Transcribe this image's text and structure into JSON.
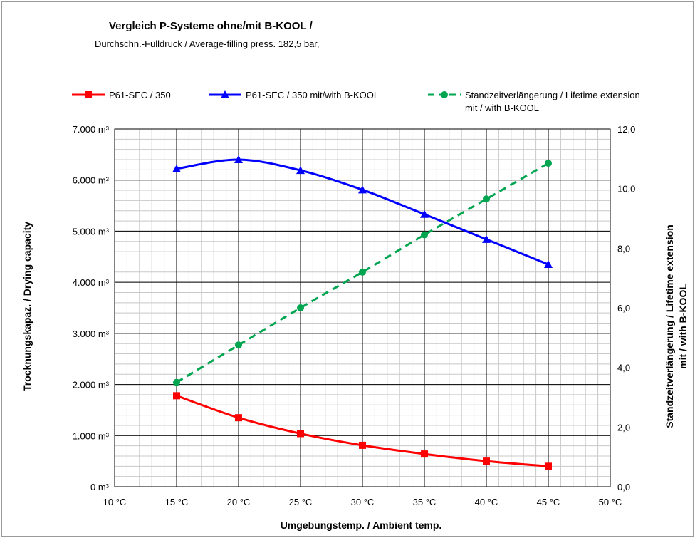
{
  "chart_data": {
    "type": "line",
    "title": "Vergleich P-Systeme ohne/mit B-KOOL /",
    "subtitle": "Durchschn.-Fülldruck / Average-filling press. 182,5 bar,",
    "xlabel": "Umgebungstemp. / Ambient temp.",
    "ylabel": "Trocknungskapaz. / Drying capacity",
    "y2label": [
      "Standzeitverlängerung / Lifetime extension",
      "mit / with B-KOOL"
    ],
    "x": [
      15,
      20,
      25,
      30,
      35,
      40,
      45
    ],
    "xlim": [
      10,
      50
    ],
    "ylim": [
      0,
      7000
    ],
    "y2lim": [
      0,
      12
    ],
    "x_ticks": [
      10,
      15,
      20,
      25,
      30,
      35,
      40,
      45,
      50
    ],
    "x_tick_labels": [
      "10 °C",
      "15 °C",
      "20 °C",
      "25 °C",
      "30 °C",
      "35 °C",
      "40 °C",
      "45 °C",
      "50 °C"
    ],
    "y_ticks": [
      0,
      1000,
      2000,
      3000,
      4000,
      5000,
      6000,
      7000
    ],
    "y_tick_labels": [
      "0 m³",
      "1.000 m³",
      "2.000 m³",
      "3.000 m³",
      "4.000 m³",
      "5.000 m³",
      "6.000 m³",
      "7.000 m³"
    ],
    "y2_ticks": [
      0,
      2,
      4,
      6,
      8,
      10,
      12
    ],
    "y2_tick_labels": [
      "0,0",
      "2,0",
      "4,0",
      "6,0",
      "8,0",
      "10,0",
      "12,0"
    ],
    "grid": true,
    "legend_position": "top",
    "series": [
      {
        "name": "P61-SEC / 350",
        "axis": "left",
        "color": "#ff0000",
        "marker": "square",
        "dash": "solid",
        "values": [
          1780,
          1350,
          1040,
          810,
          640,
          500,
          400
        ]
      },
      {
        "name": "P61-SEC / 350 mit/with B-KOOL",
        "axis": "left",
        "color": "#0000ff",
        "marker": "triangle",
        "dash": "solid",
        "values": [
          6220,
          6400,
          6190,
          5810,
          5330,
          4840,
          4350
        ]
      },
      {
        "name": [
          "Standzeitverlängerung  / Lifetime extension",
          "mit / with B-KOOL"
        ],
        "axis": "right",
        "color": "#00a550",
        "marker": "circle",
        "dash": "dashed",
        "values": [
          3.5,
          4.75,
          6.0,
          7.2,
          8.45,
          9.65,
          10.85
        ]
      }
    ]
  }
}
